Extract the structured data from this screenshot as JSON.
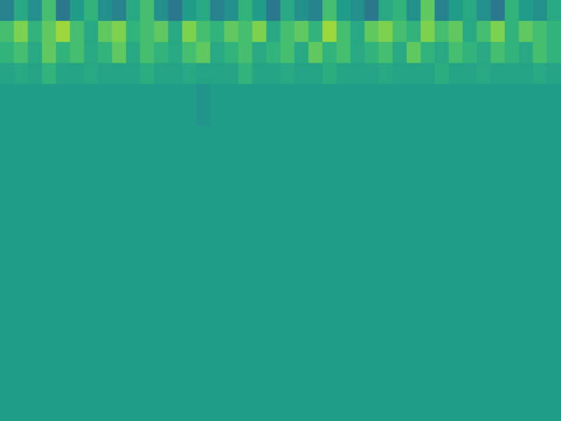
{
  "chart_data": {
    "type": "heatmap",
    "tick_labels": false,
    "grid": false,
    "color_range": [
      0,
      1
    ],
    "cells": [
      [
        0.45,
        0.6,
        0.5,
        0.7,
        0.4,
        0.55,
        0.65,
        0.5,
        0.45,
        0.6,
        0.7,
        0.5,
        0.4,
        0.55,
        0.6,
        0.45,
        0.5,
        0.65,
        0.55,
        0.4,
        0.6,
        0.5,
        0.45,
        0.7,
        0.55,
        0.5,
        0.4,
        0.6,
        0.65,
        0.5,
        0.75,
        0.45,
        0.55,
        0.6,
        0.5,
        0.4,
        0.65,
        0.55,
        0.5,
        0.6
      ],
      [
        0.7,
        0.8,
        0.65,
        0.75,
        0.85,
        0.7,
        0.6,
        0.75,
        0.8,
        0.65,
        0.7,
        0.75,
        0.6,
        0.8,
        0.7,
        0.65,
        0.75,
        0.7,
        0.8,
        0.6,
        0.7,
        0.75,
        0.65,
        0.85,
        0.7,
        0.6,
        0.75,
        0.8,
        0.7,
        0.65,
        0.8,
        0.7,
        0.75,
        0.6,
        0.7,
        0.8,
        0.65,
        0.75,
        0.7,
        0.65
      ],
      [
        0.65,
        0.7,
        0.6,
        0.75,
        0.65,
        0.7,
        0.6,
        0.65,
        0.75,
        0.6,
        0.7,
        0.65,
        0.6,
        0.7,
        0.75,
        0.6,
        0.65,
        0.7,
        0.6,
        0.65,
        0.7,
        0.6,
        0.75,
        0.65,
        0.7,
        0.6,
        0.65,
        0.7,
        0.6,
        0.75,
        0.65,
        0.6,
        0.7,
        0.65,
        0.6,
        0.7,
        0.65,
        0.6,
        0.7,
        0.65
      ],
      [
        0.58,
        0.6,
        0.58,
        0.65,
        0.58,
        0.58,
        0.6,
        0.58,
        0.58,
        0.58,
        0.62,
        0.58,
        0.58,
        0.6,
        0.58,
        0.58,
        0.58,
        0.65,
        0.58,
        0.58,
        0.6,
        0.58,
        0.58,
        0.62,
        0.58,
        0.58,
        0.58,
        0.6,
        0.58,
        0.58,
        0.58,
        0.62,
        0.58,
        0.58,
        0.6,
        0.58,
        0.58,
        0.58,
        0.6,
        0.58
      ],
      [
        0.55,
        0.55,
        0.55,
        0.55,
        0.55,
        0.55,
        0.55,
        0.55,
        0.55,
        0.55,
        0.55,
        0.55,
        0.55,
        0.55,
        0.52,
        0.55,
        0.55,
        0.55,
        0.55,
        0.55,
        0.55,
        0.55,
        0.55,
        0.55,
        0.55,
        0.55,
        0.55,
        0.55,
        0.55,
        0.55,
        0.55,
        0.55,
        0.55,
        0.55,
        0.55,
        0.55,
        0.55,
        0.55,
        0.55,
        0.55
      ],
      [
        0.55,
        0.55,
        0.55,
        0.55,
        0.55,
        0.55,
        0.55,
        0.55,
        0.55,
        0.55,
        0.55,
        0.55,
        0.55,
        0.55,
        0.52,
        0.55,
        0.55,
        0.55,
        0.55,
        0.55,
        0.55,
        0.55,
        0.55,
        0.55,
        0.55,
        0.55,
        0.55,
        0.55,
        0.55,
        0.55,
        0.55,
        0.55,
        0.55,
        0.55,
        0.55,
        0.55,
        0.55,
        0.55,
        0.55,
        0.55
      ],
      [
        0.55,
        0.55,
        0.55,
        0.55,
        0.55,
        0.55,
        0.55,
        0.55,
        0.55,
        0.55,
        0.55,
        0.55,
        0.55,
        0.55,
        0.55,
        0.55,
        0.55,
        0.55,
        0.55,
        0.55,
        0.55,
        0.55,
        0.55,
        0.55,
        0.55,
        0.55,
        0.55,
        0.55,
        0.55,
        0.55,
        0.55,
        0.55,
        0.55,
        0.55,
        0.55,
        0.55,
        0.55,
        0.55,
        0.55,
        0.55
      ],
      [
        0.55,
        0.55,
        0.55,
        0.55,
        0.55,
        0.55,
        0.55,
        0.55,
        0.55,
        0.55,
        0.55,
        0.55,
        0.55,
        0.55,
        0.55,
        0.55,
        0.55,
        0.55,
        0.55,
        0.55,
        0.55,
        0.55,
        0.55,
        0.55,
        0.55,
        0.55,
        0.55,
        0.55,
        0.55,
        0.55,
        0.55,
        0.55,
        0.55,
        0.55,
        0.55,
        0.55,
        0.55,
        0.55,
        0.55,
        0.55
      ],
      [
        0.55,
        0.55,
        0.55,
        0.55,
        0.55,
        0.55,
        0.55,
        0.55,
        0.55,
        0.55,
        0.55,
        0.55,
        0.55,
        0.55,
        0.55,
        0.55,
        0.55,
        0.55,
        0.55,
        0.55,
        0.55,
        0.55,
        0.55,
        0.55,
        0.55,
        0.55,
        0.55,
        0.55,
        0.55,
        0.55,
        0.55,
        0.55,
        0.55,
        0.55,
        0.55,
        0.55,
        0.55,
        0.55,
        0.55,
        0.55
      ],
      [
        0.55,
        0.55,
        0.55,
        0.55,
        0.55,
        0.55,
        0.55,
        0.55,
        0.55,
        0.55,
        0.55,
        0.55,
        0.55,
        0.55,
        0.55,
        0.55,
        0.55,
        0.55,
        0.55,
        0.55,
        0.55,
        0.55,
        0.55,
        0.55,
        0.55,
        0.55,
        0.55,
        0.55,
        0.55,
        0.55,
        0.55,
        0.55,
        0.55,
        0.55,
        0.55,
        0.55,
        0.55,
        0.55,
        0.55,
        0.55
      ],
      [
        0.55,
        0.55,
        0.55,
        0.55,
        0.55,
        0.55,
        0.55,
        0.55,
        0.55,
        0.55,
        0.55,
        0.55,
        0.55,
        0.55,
        0.55,
        0.55,
        0.55,
        0.55,
        0.55,
        0.55,
        0.55,
        0.55,
        0.55,
        0.55,
        0.55,
        0.55,
        0.55,
        0.55,
        0.55,
        0.55,
        0.55,
        0.55,
        0.55,
        0.55,
        0.55,
        0.55,
        0.55,
        0.55,
        0.55,
        0.55
      ],
      [
        0.55,
        0.55,
        0.55,
        0.55,
        0.55,
        0.55,
        0.55,
        0.55,
        0.55,
        0.55,
        0.55,
        0.55,
        0.55,
        0.55,
        0.55,
        0.55,
        0.55,
        0.55,
        0.55,
        0.55,
        0.55,
        0.55,
        0.55,
        0.55,
        0.55,
        0.55,
        0.55,
        0.55,
        0.55,
        0.55,
        0.55,
        0.55,
        0.55,
        0.55,
        0.55,
        0.55,
        0.55,
        0.55,
        0.55,
        0.55
      ],
      [
        0.55,
        0.55,
        0.55,
        0.55,
        0.55,
        0.55,
        0.55,
        0.55,
        0.55,
        0.55,
        0.55,
        0.55,
        0.55,
        0.55,
        0.55,
        0.55,
        0.55,
        0.55,
        0.55,
        0.55,
        0.55,
        0.55,
        0.55,
        0.55,
        0.55,
        0.55,
        0.55,
        0.55,
        0.55,
        0.55,
        0.55,
        0.55,
        0.55,
        0.55,
        0.55,
        0.55,
        0.55,
        0.55,
        0.55,
        0.55
      ],
      [
        0.55,
        0.55,
        0.55,
        0.55,
        0.55,
        0.55,
        0.55,
        0.55,
        0.55,
        0.55,
        0.55,
        0.55,
        0.55,
        0.55,
        0.55,
        0.55,
        0.55,
        0.55,
        0.55,
        0.55,
        0.55,
        0.55,
        0.55,
        0.55,
        0.55,
        0.55,
        0.55,
        0.55,
        0.55,
        0.55,
        0.55,
        0.55,
        0.55,
        0.55,
        0.55,
        0.55,
        0.55,
        0.55,
        0.55,
        0.55
      ],
      [
        0.55,
        0.55,
        0.55,
        0.55,
        0.55,
        0.55,
        0.55,
        0.55,
        0.55,
        0.55,
        0.55,
        0.55,
        0.55,
        0.55,
        0.55,
        0.55,
        0.55,
        0.55,
        0.55,
        0.55,
        0.55,
        0.55,
        0.55,
        0.55,
        0.55,
        0.55,
        0.55,
        0.55,
        0.55,
        0.55,
        0.55,
        0.55,
        0.55,
        0.55,
        0.55,
        0.55,
        0.55,
        0.55,
        0.55,
        0.55
      ],
      [
        0.55,
        0.55,
        0.55,
        0.55,
        0.55,
        0.55,
        0.55,
        0.55,
        0.55,
        0.55,
        0.55,
        0.55,
        0.55,
        0.55,
        0.55,
        0.55,
        0.55,
        0.55,
        0.55,
        0.55,
        0.55,
        0.55,
        0.55,
        0.55,
        0.55,
        0.55,
        0.55,
        0.55,
        0.55,
        0.55,
        0.55,
        0.55,
        0.55,
        0.55,
        0.55,
        0.55,
        0.55,
        0.55,
        0.55,
        0.55
      ],
      [
        0.55,
        0.55,
        0.55,
        0.55,
        0.55,
        0.55,
        0.55,
        0.55,
        0.55,
        0.55,
        0.55,
        0.55,
        0.55,
        0.55,
        0.55,
        0.55,
        0.55,
        0.55,
        0.55,
        0.55,
        0.55,
        0.55,
        0.55,
        0.55,
        0.55,
        0.55,
        0.55,
        0.55,
        0.55,
        0.55,
        0.55,
        0.55,
        0.55,
        0.55,
        0.55,
        0.55,
        0.55,
        0.55,
        0.55,
        0.55
      ],
      [
        0.55,
        0.55,
        0.55,
        0.55,
        0.55,
        0.55,
        0.55,
        0.55,
        0.55,
        0.55,
        0.55,
        0.55,
        0.55,
        0.55,
        0.55,
        0.55,
        0.55,
        0.55,
        0.55,
        0.55,
        0.55,
        0.55,
        0.55,
        0.55,
        0.55,
        0.55,
        0.55,
        0.55,
        0.55,
        0.55,
        0.55,
        0.55,
        0.55,
        0.55,
        0.55,
        0.55,
        0.55,
        0.55,
        0.55,
        0.55
      ],
      [
        0.55,
        0.55,
        0.55,
        0.55,
        0.55,
        0.55,
        0.55,
        0.55,
        0.55,
        0.55,
        0.55,
        0.55,
        0.55,
        0.55,
        0.55,
        0.55,
        0.55,
        0.55,
        0.55,
        0.55,
        0.55,
        0.55,
        0.55,
        0.55,
        0.55,
        0.55,
        0.55,
        0.55,
        0.55,
        0.55,
        0.55,
        0.55,
        0.55,
        0.55,
        0.55,
        0.55,
        0.55,
        0.55,
        0.55,
        0.55
      ],
      [
        0.55,
        0.55,
        0.55,
        0.55,
        0.55,
        0.55,
        0.55,
        0.55,
        0.55,
        0.55,
        0.55,
        0.55,
        0.55,
        0.55,
        0.55,
        0.55,
        0.55,
        0.55,
        0.55,
        0.55,
        0.55,
        0.55,
        0.55,
        0.55,
        0.55,
        0.55,
        0.55,
        0.55,
        0.55,
        0.55,
        0.55,
        0.55,
        0.55,
        0.55,
        0.55,
        0.55,
        0.55,
        0.55,
        0.55,
        0.55
      ]
    ]
  }
}
